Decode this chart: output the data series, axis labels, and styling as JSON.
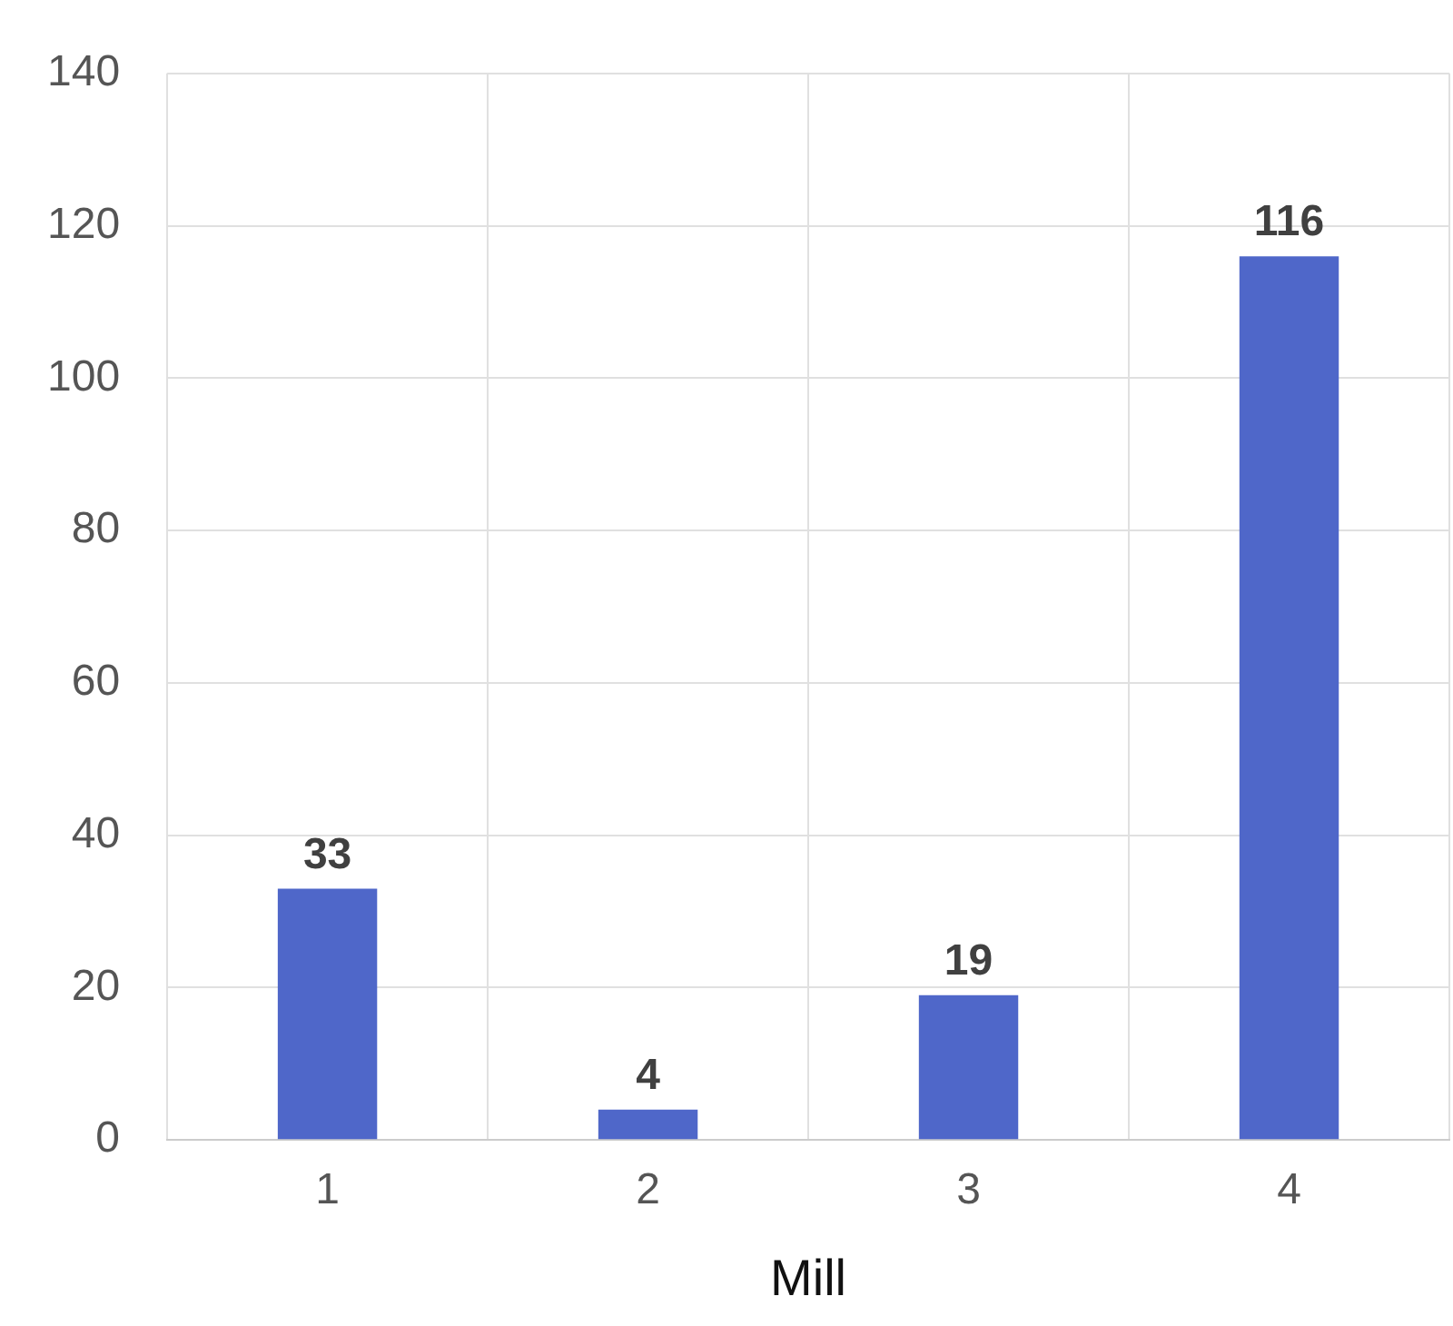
{
  "chart_data": {
    "type": "bar",
    "xlabel": "Mill",
    "categories": [
      "1",
      "2",
      "3",
      "4"
    ],
    "values": [
      33,
      4,
      19,
      116
    ],
    "color": "#4f67c9",
    "ylim": [
      0,
      140
    ],
    "yticks": [
      0,
      20,
      40,
      60,
      80,
      100,
      120,
      140
    ],
    "grid": true,
    "data_labels": true,
    "legend": false
  }
}
